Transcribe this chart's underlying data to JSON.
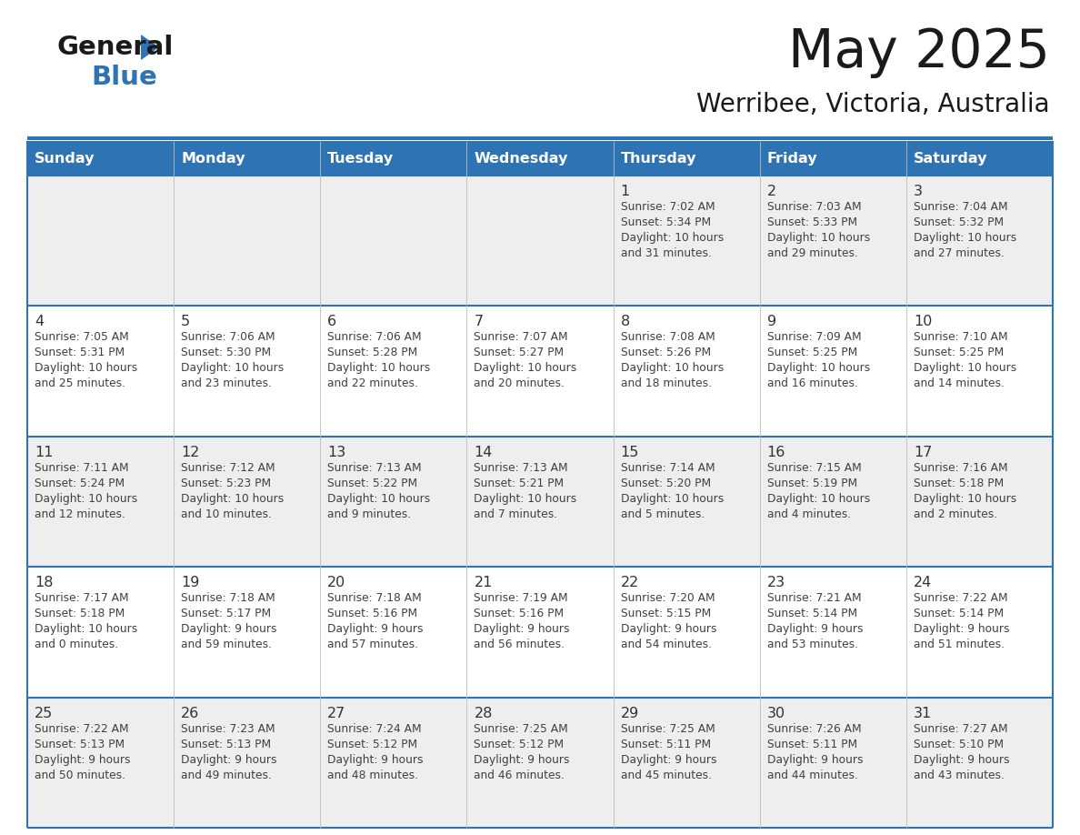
{
  "title": "May 2025",
  "subtitle": "Werribee, Victoria, Australia",
  "header_bg": "#2E74B5",
  "header_text": "#FFFFFF",
  "cell_bg_odd": "#EEEEEE",
  "cell_bg_even": "#FFFFFF",
  "border_color": "#2E74B5",
  "text_color": "#404040",
  "day_num_color": "#333333",
  "day_headers": [
    "Sunday",
    "Monday",
    "Tuesday",
    "Wednesday",
    "Thursday",
    "Friday",
    "Saturday"
  ],
  "weeks": [
    [
      {
        "day": "",
        "info": ""
      },
      {
        "day": "",
        "info": ""
      },
      {
        "day": "",
        "info": ""
      },
      {
        "day": "",
        "info": ""
      },
      {
        "day": "1",
        "info": "Sunrise: 7:02 AM\nSunset: 5:34 PM\nDaylight: 10 hours\nand 31 minutes."
      },
      {
        "day": "2",
        "info": "Sunrise: 7:03 AM\nSunset: 5:33 PM\nDaylight: 10 hours\nand 29 minutes."
      },
      {
        "day": "3",
        "info": "Sunrise: 7:04 AM\nSunset: 5:32 PM\nDaylight: 10 hours\nand 27 minutes."
      }
    ],
    [
      {
        "day": "4",
        "info": "Sunrise: 7:05 AM\nSunset: 5:31 PM\nDaylight: 10 hours\nand 25 minutes."
      },
      {
        "day": "5",
        "info": "Sunrise: 7:06 AM\nSunset: 5:30 PM\nDaylight: 10 hours\nand 23 minutes."
      },
      {
        "day": "6",
        "info": "Sunrise: 7:06 AM\nSunset: 5:28 PM\nDaylight: 10 hours\nand 22 minutes."
      },
      {
        "day": "7",
        "info": "Sunrise: 7:07 AM\nSunset: 5:27 PM\nDaylight: 10 hours\nand 20 minutes."
      },
      {
        "day": "8",
        "info": "Sunrise: 7:08 AM\nSunset: 5:26 PM\nDaylight: 10 hours\nand 18 minutes."
      },
      {
        "day": "9",
        "info": "Sunrise: 7:09 AM\nSunset: 5:25 PM\nDaylight: 10 hours\nand 16 minutes."
      },
      {
        "day": "10",
        "info": "Sunrise: 7:10 AM\nSunset: 5:25 PM\nDaylight: 10 hours\nand 14 minutes."
      }
    ],
    [
      {
        "day": "11",
        "info": "Sunrise: 7:11 AM\nSunset: 5:24 PM\nDaylight: 10 hours\nand 12 minutes."
      },
      {
        "day": "12",
        "info": "Sunrise: 7:12 AM\nSunset: 5:23 PM\nDaylight: 10 hours\nand 10 minutes."
      },
      {
        "day": "13",
        "info": "Sunrise: 7:13 AM\nSunset: 5:22 PM\nDaylight: 10 hours\nand 9 minutes."
      },
      {
        "day": "14",
        "info": "Sunrise: 7:13 AM\nSunset: 5:21 PM\nDaylight: 10 hours\nand 7 minutes."
      },
      {
        "day": "15",
        "info": "Sunrise: 7:14 AM\nSunset: 5:20 PM\nDaylight: 10 hours\nand 5 minutes."
      },
      {
        "day": "16",
        "info": "Sunrise: 7:15 AM\nSunset: 5:19 PM\nDaylight: 10 hours\nand 4 minutes."
      },
      {
        "day": "17",
        "info": "Sunrise: 7:16 AM\nSunset: 5:18 PM\nDaylight: 10 hours\nand 2 minutes."
      }
    ],
    [
      {
        "day": "18",
        "info": "Sunrise: 7:17 AM\nSunset: 5:18 PM\nDaylight: 10 hours\nand 0 minutes."
      },
      {
        "day": "19",
        "info": "Sunrise: 7:18 AM\nSunset: 5:17 PM\nDaylight: 9 hours\nand 59 minutes."
      },
      {
        "day": "20",
        "info": "Sunrise: 7:18 AM\nSunset: 5:16 PM\nDaylight: 9 hours\nand 57 minutes."
      },
      {
        "day": "21",
        "info": "Sunrise: 7:19 AM\nSunset: 5:16 PM\nDaylight: 9 hours\nand 56 minutes."
      },
      {
        "day": "22",
        "info": "Sunrise: 7:20 AM\nSunset: 5:15 PM\nDaylight: 9 hours\nand 54 minutes."
      },
      {
        "day": "23",
        "info": "Sunrise: 7:21 AM\nSunset: 5:14 PM\nDaylight: 9 hours\nand 53 minutes."
      },
      {
        "day": "24",
        "info": "Sunrise: 7:22 AM\nSunset: 5:14 PM\nDaylight: 9 hours\nand 51 minutes."
      }
    ],
    [
      {
        "day": "25",
        "info": "Sunrise: 7:22 AM\nSunset: 5:13 PM\nDaylight: 9 hours\nand 50 minutes."
      },
      {
        "day": "26",
        "info": "Sunrise: 7:23 AM\nSunset: 5:13 PM\nDaylight: 9 hours\nand 49 minutes."
      },
      {
        "day": "27",
        "info": "Sunrise: 7:24 AM\nSunset: 5:12 PM\nDaylight: 9 hours\nand 48 minutes."
      },
      {
        "day": "28",
        "info": "Sunrise: 7:25 AM\nSunset: 5:12 PM\nDaylight: 9 hours\nand 46 minutes."
      },
      {
        "day": "29",
        "info": "Sunrise: 7:25 AM\nSunset: 5:11 PM\nDaylight: 9 hours\nand 45 minutes."
      },
      {
        "day": "30",
        "info": "Sunrise: 7:26 AM\nSunset: 5:11 PM\nDaylight: 9 hours\nand 44 minutes."
      },
      {
        "day": "31",
        "info": "Sunrise: 7:27 AM\nSunset: 5:10 PM\nDaylight: 9 hours\nand 43 minutes."
      }
    ]
  ],
  "logo_general_color": "#1a1a1a",
  "logo_blue_color": "#2E74B5",
  "logo_triangle_color": "#2E74B5"
}
